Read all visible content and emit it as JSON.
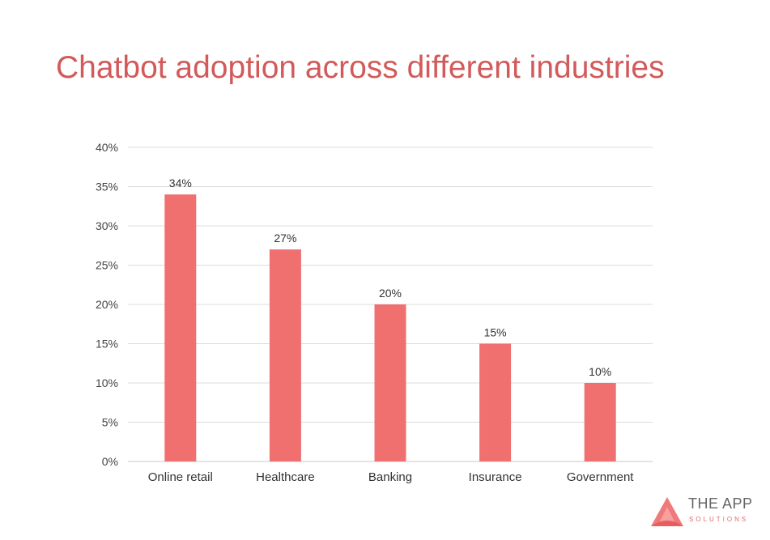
{
  "chart_data": {
    "type": "bar",
    "title": "Chatbot adoption across different industries",
    "categories": [
      "Online retail",
      "Healthcare",
      "Banking",
      "Insurance",
      "Government"
    ],
    "values": [
      34,
      27,
      20,
      15,
      10
    ],
    "data_labels": [
      "34%",
      "27%",
      "20%",
      "15%",
      "10%"
    ],
    "ylim": [
      0,
      40
    ],
    "y_ticks": [
      0,
      5,
      10,
      15,
      20,
      25,
      30,
      35,
      40
    ],
    "y_tick_labels": [
      "0%",
      "5%",
      "10%",
      "15%",
      "20%",
      "25%",
      "30%",
      "35%",
      "40%"
    ],
    "grid": true,
    "legend": "none",
    "bar_color": "#f07070",
    "xlabel": "",
    "ylabel": ""
  },
  "title_color": "#d35a5a",
  "logo": {
    "name": "THE APP",
    "tagline": "SOLUTIONS"
  }
}
